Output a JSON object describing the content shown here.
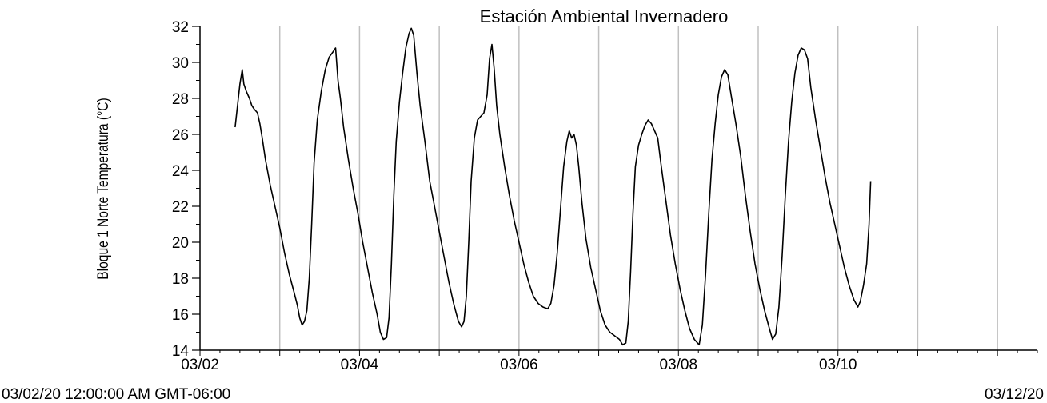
{
  "chart_data": {
    "type": "line",
    "title": "Estación Ambiental Invernadero",
    "ylabel": "Bloque 1 Norte Temperatura (°C)",
    "xlabel": "",
    "range_start_label": "03/02/20 12:00:00 AM GMT-06:00",
    "range_end_label": "03/12/20",
    "x_unit": "days since 03/02/20 00:00",
    "xlim": [
      0,
      10.5
    ],
    "ylim": [
      14,
      32
    ],
    "y_ticks": [
      14,
      16,
      18,
      20,
      22,
      24,
      26,
      28,
      30,
      32
    ],
    "x_ticks": [
      {
        "x": 0,
        "label": "03/02"
      },
      {
        "x": 2,
        "label": "03/04"
      },
      {
        "x": 4,
        "label": "03/06"
      },
      {
        "x": 6,
        "label": "03/08"
      },
      {
        "x": 8,
        "label": "03/10"
      }
    ],
    "grid": "vertical",
    "grid_x": [
      1,
      2,
      3,
      4,
      5,
      6,
      7,
      8,
      9,
      10
    ],
    "line_color": "#000000",
    "grid_color": "#c0c0c0",
    "series": [
      {
        "values": [
          [
            0.44,
            26.4
          ],
          [
            0.47,
            27.6
          ],
          [
            0.5,
            28.8
          ],
          [
            0.53,
            29.6
          ],
          [
            0.55,
            28.8
          ],
          [
            0.58,
            28.4
          ],
          [
            0.62,
            28.0
          ],
          [
            0.65,
            27.6
          ],
          [
            0.68,
            27.4
          ],
          [
            0.72,
            27.2
          ],
          [
            0.75,
            26.6
          ],
          [
            0.78,
            25.8
          ],
          [
            0.82,
            24.6
          ],
          [
            0.88,
            23.2
          ],
          [
            0.94,
            22.0
          ],
          [
            1.0,
            20.8
          ],
          [
            1.06,
            19.4
          ],
          [
            1.12,
            18.2
          ],
          [
            1.18,
            17.2
          ],
          [
            1.22,
            16.5
          ],
          [
            1.25,
            15.8
          ],
          [
            1.28,
            15.4
          ],
          [
            1.31,
            15.6
          ],
          [
            1.34,
            16.2
          ],
          [
            1.37,
            18.0
          ],
          [
            1.4,
            21.0
          ],
          [
            1.43,
            24.4
          ],
          [
            1.47,
            26.8
          ],
          [
            1.52,
            28.4
          ],
          [
            1.57,
            29.6
          ],
          [
            1.62,
            30.3
          ],
          [
            1.67,
            30.6
          ],
          [
            1.7,
            30.8
          ],
          [
            1.73,
            29.0
          ],
          [
            1.76,
            28.0
          ],
          [
            1.8,
            26.4
          ],
          [
            1.86,
            24.6
          ],
          [
            1.92,
            23.0
          ],
          [
            1.98,
            21.6
          ],
          [
            2.04,
            20.0
          ],
          [
            2.1,
            18.6
          ],
          [
            2.16,
            17.2
          ],
          [
            2.22,
            16.0
          ],
          [
            2.26,
            15.0
          ],
          [
            2.3,
            14.6
          ],
          [
            2.34,
            14.7
          ],
          [
            2.37,
            15.8
          ],
          [
            2.4,
            18.8
          ],
          [
            2.43,
            22.6
          ],
          [
            2.46,
            25.6
          ],
          [
            2.5,
            27.8
          ],
          [
            2.54,
            29.4
          ],
          [
            2.58,
            30.8
          ],
          [
            2.62,
            31.6
          ],
          [
            2.65,
            31.9
          ],
          [
            2.68,
            31.5
          ],
          [
            2.72,
            29.4
          ],
          [
            2.76,
            27.6
          ],
          [
            2.82,
            25.6
          ],
          [
            2.88,
            23.4
          ],
          [
            2.94,
            22.0
          ],
          [
            3.0,
            20.6
          ],
          [
            3.06,
            19.2
          ],
          [
            3.12,
            17.8
          ],
          [
            3.18,
            16.6
          ],
          [
            3.24,
            15.6
          ],
          [
            3.28,
            15.3
          ],
          [
            3.31,
            15.6
          ],
          [
            3.34,
            17.0
          ],
          [
            3.37,
            20.0
          ],
          [
            3.4,
            23.4
          ],
          [
            3.44,
            25.8
          ],
          [
            3.48,
            26.8
          ],
          [
            3.52,
            27.0
          ],
          [
            3.56,
            27.2
          ],
          [
            3.6,
            28.2
          ],
          [
            3.63,
            30.2
          ],
          [
            3.66,
            31.0
          ],
          [
            3.69,
            29.6
          ],
          [
            3.72,
            27.6
          ],
          [
            3.76,
            26.0
          ],
          [
            3.82,
            24.2
          ],
          [
            3.88,
            22.6
          ],
          [
            3.94,
            21.2
          ],
          [
            4.0,
            20.0
          ],
          [
            4.06,
            18.8
          ],
          [
            4.12,
            17.8
          ],
          [
            4.18,
            17.0
          ],
          [
            4.24,
            16.6
          ],
          [
            4.3,
            16.4
          ],
          [
            4.36,
            16.3
          ],
          [
            4.4,
            16.6
          ],
          [
            4.44,
            17.6
          ],
          [
            4.48,
            19.4
          ],
          [
            4.52,
            21.8
          ],
          [
            4.56,
            24.2
          ],
          [
            4.6,
            25.6
          ],
          [
            4.63,
            26.2
          ],
          [
            4.66,
            25.8
          ],
          [
            4.69,
            26.0
          ],
          [
            4.72,
            25.4
          ],
          [
            4.75,
            24.2
          ],
          [
            4.79,
            22.2
          ],
          [
            4.84,
            20.2
          ],
          [
            4.9,
            18.6
          ],
          [
            4.96,
            17.4
          ],
          [
            5.02,
            16.2
          ],
          [
            5.08,
            15.4
          ],
          [
            5.14,
            15.0
          ],
          [
            5.2,
            14.8
          ],
          [
            5.26,
            14.6
          ],
          [
            5.3,
            14.3
          ],
          [
            5.34,
            14.4
          ],
          [
            5.37,
            15.6
          ],
          [
            5.4,
            18.4
          ],
          [
            5.43,
            21.6
          ],
          [
            5.46,
            24.2
          ],
          [
            5.5,
            25.4
          ],
          [
            5.54,
            26.0
          ],
          [
            5.58,
            26.5
          ],
          [
            5.62,
            26.8
          ],
          [
            5.66,
            26.6
          ],
          [
            5.7,
            26.2
          ],
          [
            5.74,
            25.8
          ],
          [
            5.78,
            24.4
          ],
          [
            5.84,
            22.4
          ],
          [
            5.9,
            20.4
          ],
          [
            5.96,
            18.8
          ],
          [
            6.02,
            17.4
          ],
          [
            6.08,
            16.2
          ],
          [
            6.14,
            15.2
          ],
          [
            6.2,
            14.6
          ],
          [
            6.26,
            14.3
          ],
          [
            6.3,
            15.4
          ],
          [
            6.34,
            18.2
          ],
          [
            6.38,
            21.6
          ],
          [
            6.42,
            24.6
          ],
          [
            6.46,
            26.6
          ],
          [
            6.5,
            28.2
          ],
          [
            6.54,
            29.2
          ],
          [
            6.58,
            29.6
          ],
          [
            6.62,
            29.3
          ],
          [
            6.66,
            28.2
          ],
          [
            6.72,
            26.6
          ],
          [
            6.78,
            24.8
          ],
          [
            6.84,
            22.6
          ],
          [
            6.9,
            20.6
          ],
          [
            6.96,
            18.8
          ],
          [
            7.02,
            17.4
          ],
          [
            7.08,
            16.2
          ],
          [
            7.14,
            15.2
          ],
          [
            7.18,
            14.6
          ],
          [
            7.22,
            14.9
          ],
          [
            7.26,
            16.4
          ],
          [
            7.3,
            19.2
          ],
          [
            7.34,
            22.6
          ],
          [
            7.38,
            25.6
          ],
          [
            7.42,
            27.8
          ],
          [
            7.46,
            29.4
          ],
          [
            7.5,
            30.4
          ],
          [
            7.54,
            30.8
          ],
          [
            7.58,
            30.7
          ],
          [
            7.62,
            30.2
          ],
          [
            7.66,
            28.6
          ],
          [
            7.72,
            26.8
          ],
          [
            7.78,
            25.2
          ],
          [
            7.84,
            23.6
          ],
          [
            7.9,
            22.2
          ],
          [
            7.96,
            21.0
          ],
          [
            8.02,
            19.8
          ],
          [
            8.08,
            18.6
          ],
          [
            8.14,
            17.6
          ],
          [
            8.2,
            16.8
          ],
          [
            8.25,
            16.4
          ],
          [
            8.28,
            16.7
          ],
          [
            8.32,
            17.6
          ],
          [
            8.36,
            18.8
          ],
          [
            8.39,
            21.0
          ],
          [
            8.41,
            23.4
          ]
        ]
      }
    ]
  }
}
